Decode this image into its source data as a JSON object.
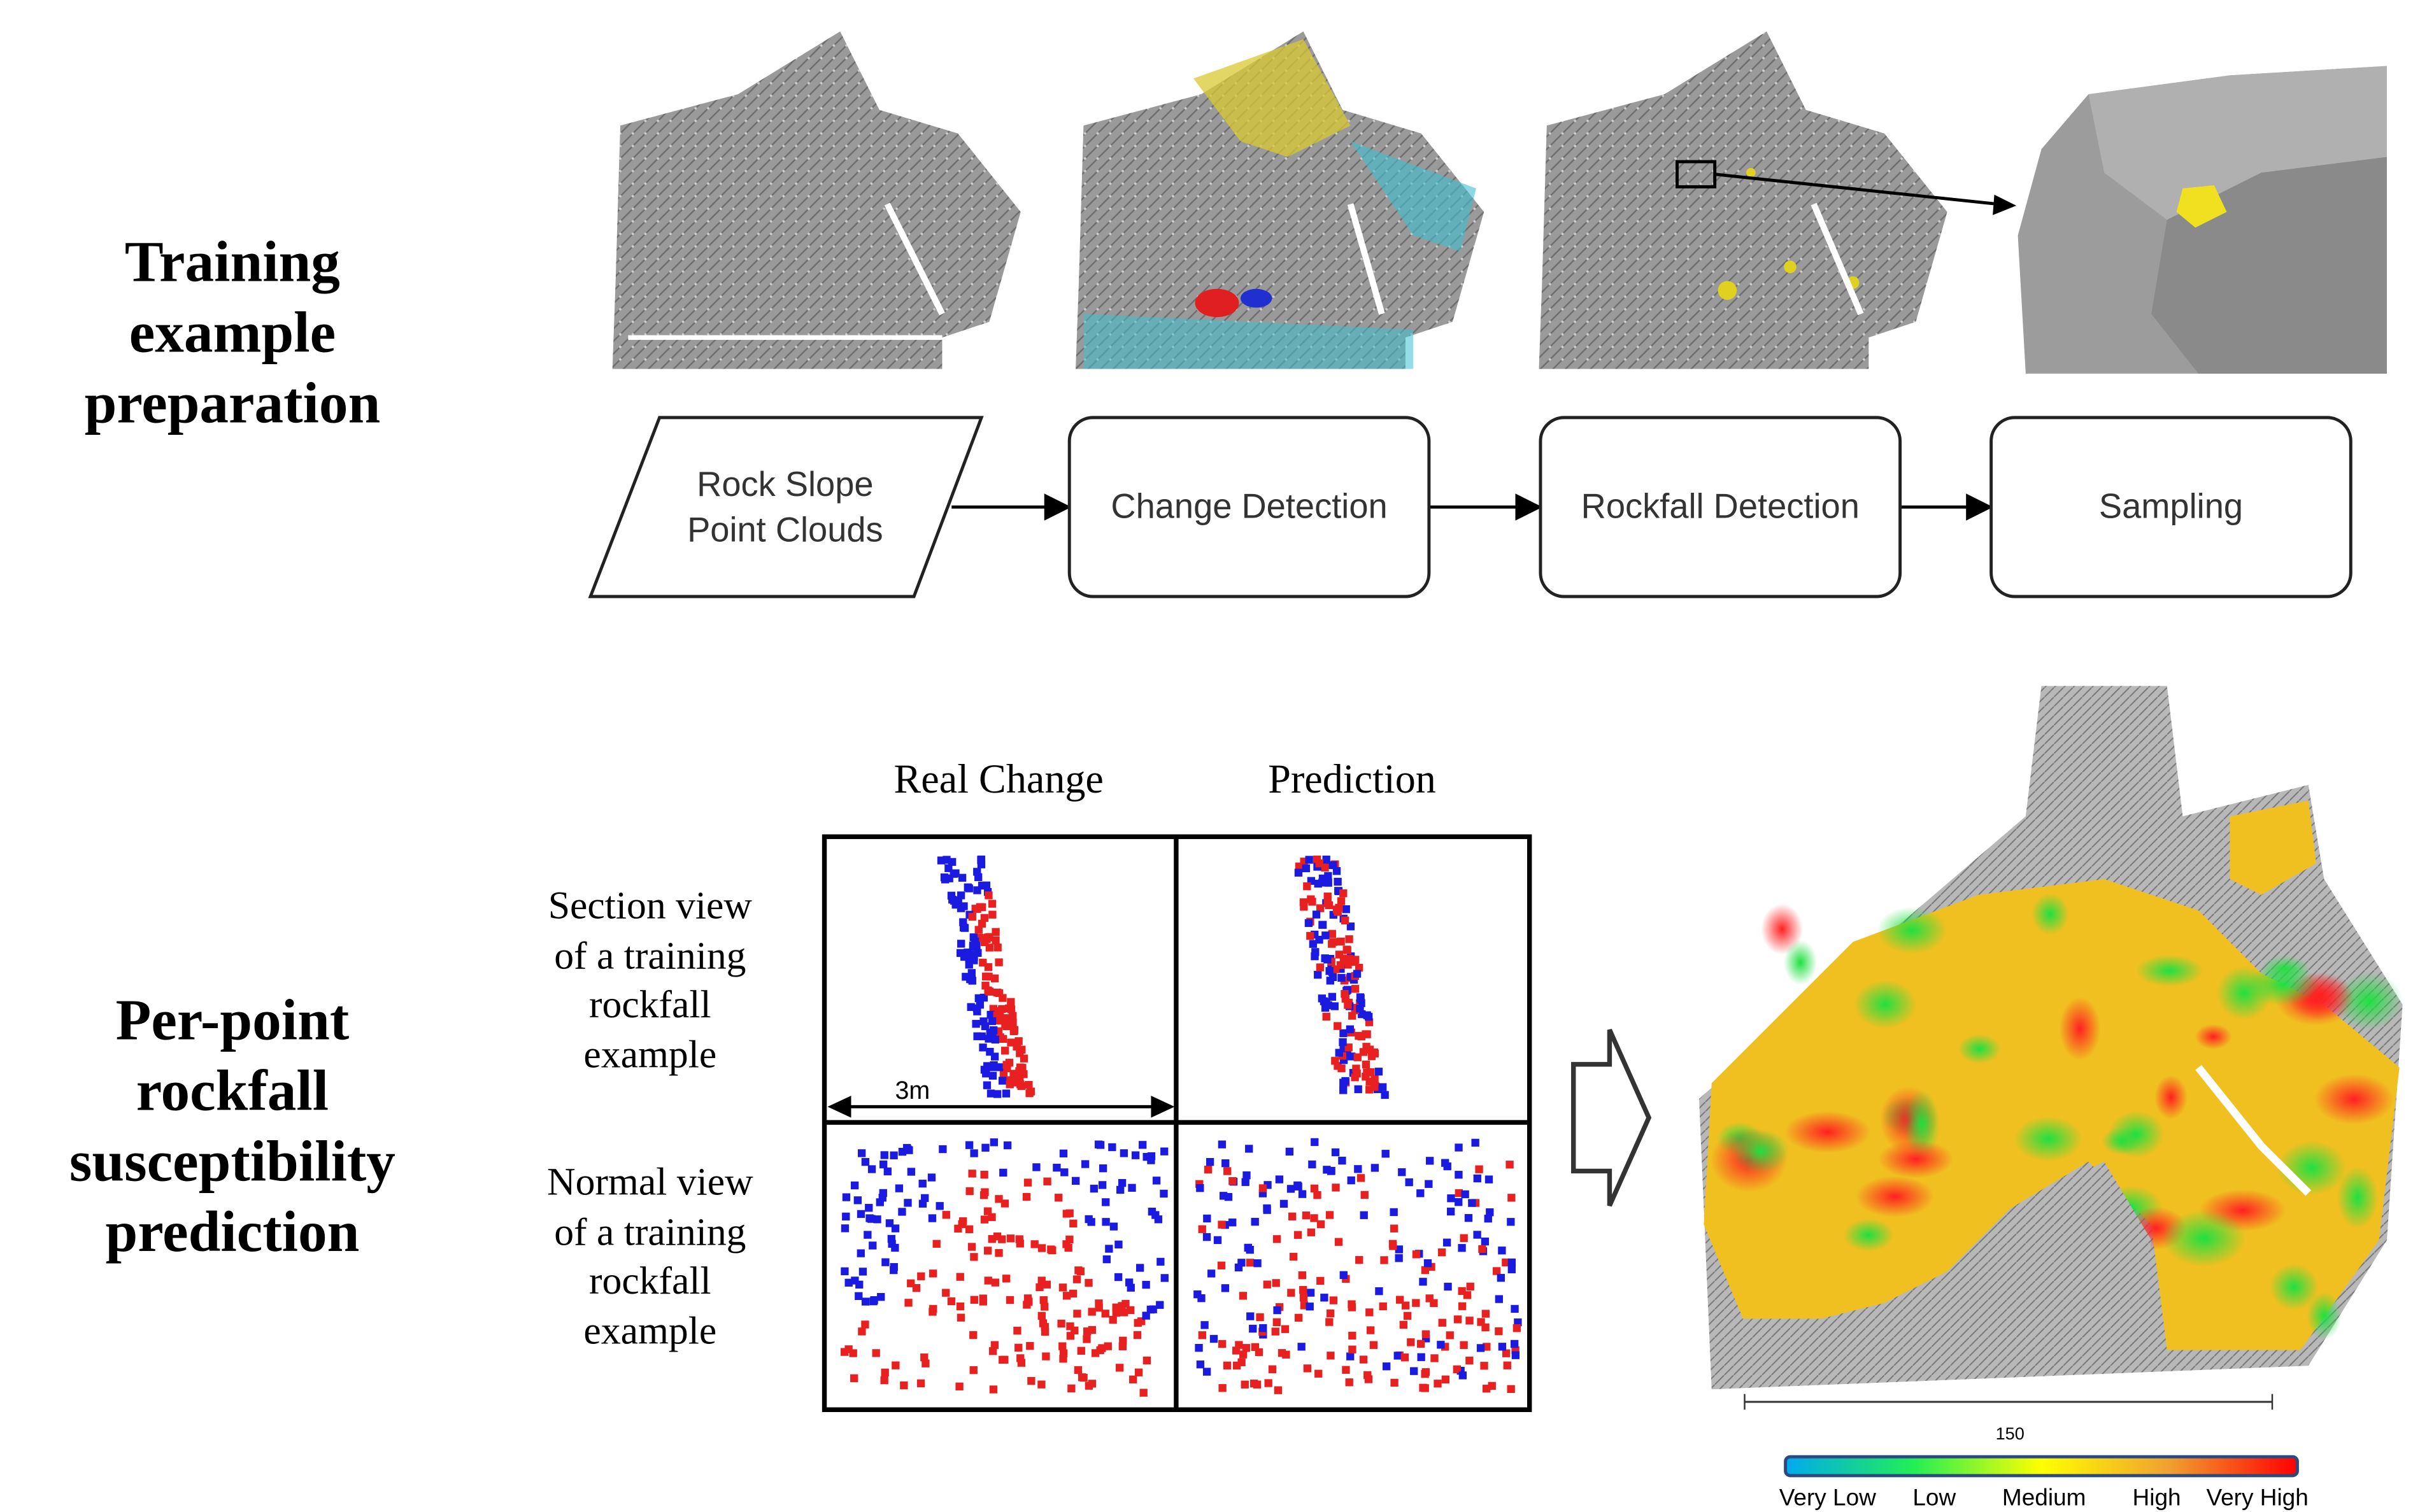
{
  "top_section": {
    "heading": [
      "Training",
      "example",
      "preparation"
    ],
    "flow_steps": [
      {
        "label": [
          "Rock Slope",
          "Point Clouds"
        ],
        "shape": "parallelogram"
      },
      {
        "label": [
          "Change Detection"
        ],
        "shape": "rounded-rect"
      },
      {
        "label": [
          "Rockfall Detection"
        ],
        "shape": "rounded-rect"
      },
      {
        "label": [
          "Sampling"
        ],
        "shape": "rounded-rect"
      }
    ]
  },
  "bottom_section": {
    "heading": [
      "Per-point",
      "rockfall",
      "susceptibility",
      "prediction"
    ],
    "column_headers": [
      "Real Change",
      "Prediction"
    ],
    "row_labels": [
      [
        "Section view",
        "of a training",
        "rockfall",
        "example"
      ],
      [
        "Normal view",
        "of a training",
        "rockfall",
        "example"
      ]
    ],
    "scale_label": "3m",
    "map_scale_label": "150",
    "legend": {
      "labels": [
        "Very Low",
        "Low",
        "Medium",
        "High",
        "Very High"
      ],
      "colors": [
        "#00aaee",
        "#22ee55",
        "#ffff00",
        "#f0a030",
        "#ff0000"
      ]
    },
    "point_colors": {
      "rockfall": "#e82020",
      "stable": "#1a1ae0"
    }
  }
}
